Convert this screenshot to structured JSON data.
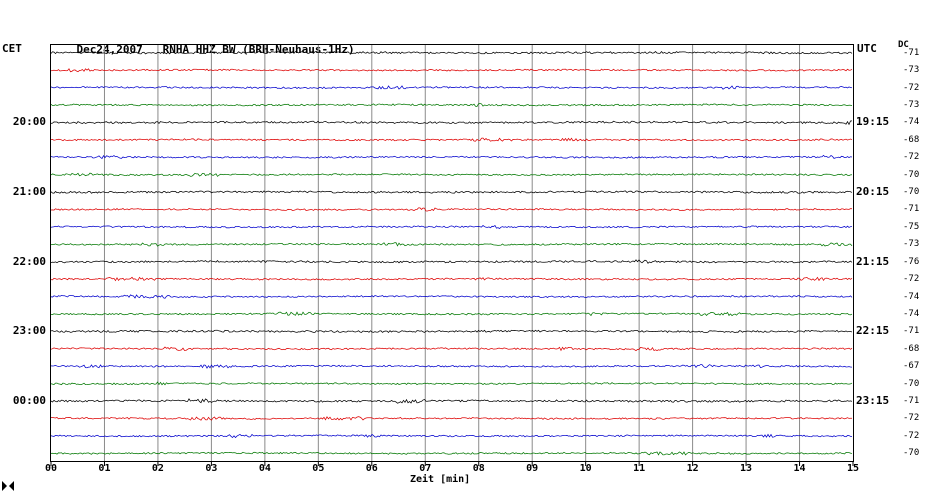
{
  "header": {
    "date": "Dec24,2007",
    "station": "RNHA HHZ BW (BRH-Neuhaus-1Hz)"
  },
  "left_axis": {
    "label": "CET"
  },
  "right_axis": {
    "label": "UTC"
  },
  "dc_column": {
    "label": "DC"
  },
  "x_axis": {
    "label": "Zeit [min]",
    "ticks": [
      "00",
      "01",
      "02",
      "03",
      "04",
      "05",
      "06",
      "07",
      "08",
      "09",
      "10",
      "11",
      "12",
      "13",
      "14",
      "15"
    ]
  },
  "chart_data": {
    "type": "line",
    "title": "Dec24,2007 RNHA HHZ BW (BRH-Neuhaus-1Hz)",
    "xlabel": "Zeit [min]",
    "x_range": [
      0,
      15
    ],
    "minutes_per_row": 15,
    "num_traces": 24,
    "trace_color_cycle": [
      "#000000",
      "#dd0000",
      "#0000cc",
      "#007700"
    ],
    "hour_rows": [
      4,
      8,
      12,
      16,
      20
    ],
    "cet_hour_labels": [
      "20:00",
      "21:00",
      "22:00",
      "23:00",
      "00:00"
    ],
    "utc_hour_labels": [
      "19:15",
      "20:15",
      "21:15",
      "22:15",
      "23:15"
    ],
    "dc_offsets": [
      -71,
      -73,
      -72,
      -73,
      -74,
      -68,
      -72,
      -70,
      -70,
      -71,
      -75,
      -73,
      -76,
      -72,
      -74,
      -74,
      -71,
      -68,
      -67,
      -70,
      -71,
      -72,
      -72,
      -70
    ],
    "amplitude_note": "quiet background noise traces, no visible seismic events",
    "grid": "vertical gridlines every 1 minute",
    "legend_position": "none"
  }
}
